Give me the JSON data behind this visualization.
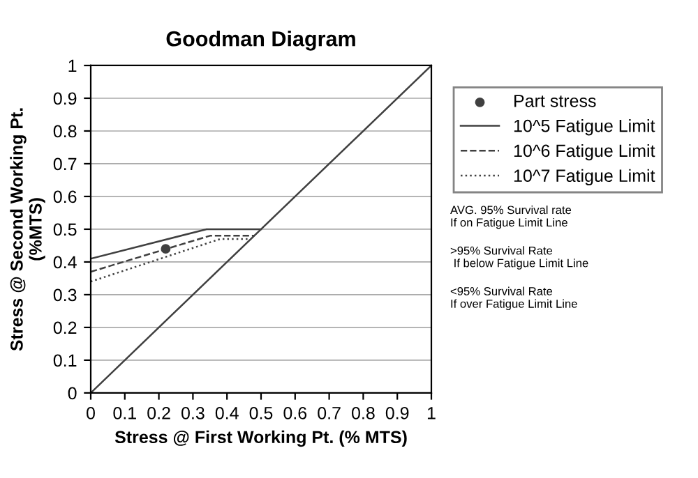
{
  "chart_data": {
    "type": "line",
    "title": "Goodman Diagram",
    "xlabel": "Stress @ First Working Pt. (% MTS)",
    "ylabel": "Stress @ Second Working Pt.\n(%MTS)",
    "series": [
      {
        "name": "Part stress",
        "type": "scatter",
        "color": "#404040",
        "marker": "circle",
        "x": [
          0.22
        ],
        "values": [
          0.44
        ]
      },
      {
        "name": "10^5 Fatigue Limit",
        "color": "#404040",
        "line_style": "solid",
        "x": [
          0,
          0.34,
          0.5
        ],
        "values": [
          0.41,
          0.5,
          0.5
        ]
      },
      {
        "name": "10^6 Fatigue Limit",
        "color": "#404040",
        "line_style": "dashed",
        "x": [
          0,
          0.35,
          0.48
        ],
        "values": [
          0.37,
          0.48,
          0.48
        ]
      },
      {
        "name": "10^7 Fatigue Limit",
        "color": "#404040",
        "line_style": "dotted",
        "x": [
          0,
          0.38,
          0.47
        ],
        "values": [
          0.34,
          0.47,
          0.47
        ]
      },
      {
        "color": "#404040",
        "line_style": "solid",
        "x": [
          0,
          1
        ],
        "values": [
          0,
          1
        ]
      }
    ],
    "xlim": [
      0,
      1
    ],
    "ylim": [
      0,
      1
    ],
    "xticks": [
      0,
      0.1,
      0.2,
      0.3,
      0.4,
      0.5,
      0.6,
      0.7,
      0.8,
      0.9,
      1
    ],
    "yticks": [
      0,
      0.1,
      0.2,
      0.3,
      0.4,
      0.5,
      0.6,
      0.7,
      0.8,
      0.9,
      1
    ],
    "grid": "y",
    "legend": "top right",
    "annotations": [
      "AVG. 95% Survival rate\nIf on Fatigue Limit Line",
      ">95% Survival Rate\n If below Fatigue Limit Line",
      "<95% Survival Rate\nIf over Fatigue Limit Line"
    ]
  }
}
